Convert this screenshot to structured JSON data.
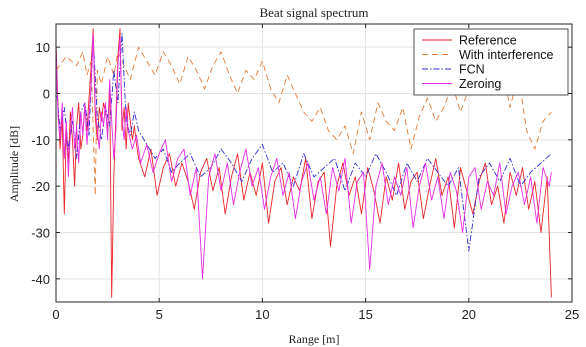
{
  "chart_data": {
    "type": "line",
    "title": "Beat signal spectrum",
    "xlabel": "Range [m]",
    "ylabel": "Amplitude [dB]",
    "xlim": [
      0,
      25
    ],
    "ylim": [
      -45,
      15
    ],
    "xticks": [
      0,
      5,
      10,
      15,
      20,
      25
    ],
    "yticks": [
      -40,
      -30,
      -20,
      -10,
      0,
      10
    ],
    "grid": true,
    "legend_position": "top-right",
    "series": [
      {
        "name": "Reference",
        "color": "#e8262a",
        "dash": "solid",
        "x": [
          0.0,
          0.1,
          0.2,
          0.3,
          0.4,
          0.5,
          0.6,
          0.7,
          0.8,
          0.9,
          1.0,
          1.1,
          1.2,
          1.3,
          1.4,
          1.5,
          1.6,
          1.7,
          1.8,
          1.9,
          2.0,
          2.1,
          2.2,
          2.3,
          2.4,
          2.5,
          2.6,
          2.7,
          2.8,
          2.9,
          3.0,
          3.1,
          3.2,
          3.3,
          3.4,
          3.5,
          3.6,
          3.7,
          3.8,
          3.9,
          4.0,
          4.3,
          4.6,
          4.9,
          5.2,
          5.5,
          5.8,
          6.1,
          6.4,
          6.7,
          7.0,
          7.3,
          7.6,
          7.9,
          8.2,
          8.5,
          8.8,
          9.1,
          9.4,
          9.7,
          10.0,
          10.3,
          10.6,
          10.9,
          11.2,
          11.5,
          11.8,
          12.1,
          12.4,
          12.7,
          13.0,
          13.3,
          13.6,
          13.9,
          14.2,
          14.5,
          14.8,
          15.1,
          15.4,
          15.7,
          16.0,
          16.3,
          16.6,
          16.9,
          17.2,
          17.5,
          17.8,
          18.1,
          18.4,
          18.7,
          19.0,
          19.3,
          19.6,
          19.9,
          20.2,
          20.5,
          20.8,
          21.1,
          21.4,
          21.7,
          22.0,
          22.3,
          22.6,
          22.9,
          23.2,
          23.5,
          23.8,
          24.0
        ],
        "y": [
          11,
          -3,
          -12,
          -5,
          -26,
          -8,
          -15,
          -4,
          -10,
          -20,
          -7,
          -2,
          -12,
          -9,
          -3,
          -8,
          -1,
          6,
          14,
          -5,
          -10,
          -3,
          -6,
          -2,
          -4,
          -8,
          2,
          -44,
          -18,
          -5,
          8,
          14,
          -8,
          -3,
          -12,
          -2,
          -6,
          -10,
          -7,
          -11,
          -14,
          -18,
          -12,
          -22,
          -16,
          -13,
          -20,
          -15,
          -19,
          -25,
          -17,
          -14,
          -21,
          -16,
          -26,
          -18,
          -13,
          -23,
          -17,
          -22,
          -15,
          -28,
          -19,
          -16,
          -24,
          -18,
          -21,
          -14,
          -27,
          -19,
          -17,
          -33,
          -20,
          -15,
          -22,
          -18,
          -26,
          -16,
          -21,
          -28,
          -18,
          -23,
          -15,
          -25,
          -19,
          -17,
          -27,
          -20,
          -14,
          -22,
          -18,
          -29,
          -16,
          -21,
          -26,
          -19,
          -15,
          -24,
          -20,
          -28,
          -17,
          -22,
          -16,
          -25,
          -19,
          -30,
          -18,
          -44
        ]
      },
      {
        "name": "With interference",
        "color": "#e57a35",
        "dash": "dashed",
        "x": [
          0.0,
          0.5,
          1.0,
          1.3,
          1.5,
          1.7,
          1.8,
          1.9,
          2.0,
          2.2,
          2.5,
          2.8,
          3.0,
          3.3,
          3.6,
          4.0,
          4.4,
          4.8,
          5.2,
          5.6,
          6.0,
          6.4,
          6.8,
          7.2,
          7.6,
          8.0,
          8.4,
          8.8,
          9.2,
          9.6,
          10.0,
          10.4,
          10.8,
          11.2,
          11.6,
          12.0,
          12.4,
          12.8,
          13.2,
          13.6,
          14.0,
          14.4,
          14.8,
          15.2,
          15.6,
          16.0,
          16.4,
          16.8,
          17.2,
          17.6,
          18.0,
          18.4,
          18.8,
          19.2,
          19.6,
          20.0,
          20.4,
          20.8,
          21.2,
          21.6,
          22.0,
          22.4,
          22.8,
          23.2,
          23.6,
          24.0
        ],
        "y": [
          5,
          8,
          6,
          9,
          4,
          7,
          -8,
          -22,
          5,
          2,
          8,
          4,
          9,
          6,
          3,
          10,
          7,
          4,
          9,
          6,
          2,
          8,
          5,
          1,
          6,
          9,
          4,
          0,
          5,
          3,
          7,
          1,
          -2,
          4,
          0,
          -4,
          -6,
          -3,
          -8,
          -10,
          -7,
          -13,
          -4,
          -10,
          -2,
          -6,
          -8,
          -3,
          -12,
          -5,
          -1,
          -6,
          -3,
          2,
          -4,
          1,
          5,
          0,
          3,
          6,
          -3,
          4,
          -8,
          -12,
          -6,
          -4
        ]
      },
      {
        "name": "FCN",
        "color": "#2b2bd6",
        "dash": "dashdot",
        "x": [
          0.0,
          0.2,
          0.4,
          0.6,
          0.8,
          1.0,
          1.2,
          1.4,
          1.6,
          1.8,
          2.0,
          2.2,
          2.4,
          2.6,
          2.8,
          3.0,
          3.2,
          3.4,
          3.6,
          3.8,
          4.0,
          4.4,
          4.8,
          5.2,
          5.6,
          6.0,
          6.5,
          7.0,
          7.5,
          8.0,
          8.5,
          9.0,
          9.5,
          10.0,
          10.5,
          11.0,
          11.5,
          12.0,
          12.5,
          13.0,
          13.5,
          14.0,
          14.5,
          15.0,
          15.5,
          16.0,
          16.5,
          17.0,
          17.5,
          18.0,
          18.5,
          19.0,
          19.5,
          20.0,
          20.5,
          21.0,
          21.5,
          22.0,
          22.5,
          23.0,
          23.5,
          24.0
        ],
        "y": [
          2,
          -8,
          -3,
          -12,
          -6,
          -14,
          -4,
          -2,
          -9,
          12,
          -5,
          -10,
          -3,
          -7,
          5,
          -2,
          13,
          -6,
          -9,
          -4,
          -8,
          -11,
          -14,
          -12,
          -17,
          -15,
          -13,
          -18,
          -16,
          -12,
          -15,
          -19,
          -14,
          -11,
          -17,
          -15,
          -20,
          -13,
          -18,
          -16,
          -14,
          -21,
          -15,
          -18,
          -13,
          -17,
          -22,
          -15,
          -19,
          -14,
          -17,
          -20,
          -16,
          -34,
          -18,
          -15,
          -19,
          -14,
          -20,
          -17,
          -15,
          -13
        ]
      },
      {
        "name": "Zeroing",
        "color": "#e82be8",
        "dash": "solid",
        "x": [
          0.0,
          0.1,
          0.2,
          0.3,
          0.4,
          0.5,
          0.6,
          0.7,
          0.8,
          0.9,
          1.0,
          1.1,
          1.2,
          1.3,
          1.4,
          1.5,
          1.6,
          1.7,
          1.8,
          1.9,
          2.0,
          2.1,
          2.2,
          2.3,
          2.4,
          2.5,
          2.6,
          2.7,
          2.8,
          2.9,
          3.0,
          3.1,
          3.2,
          3.3,
          3.4,
          3.5,
          3.7,
          3.9,
          4.1,
          4.4,
          4.7,
          5.0,
          5.3,
          5.6,
          5.9,
          6.2,
          6.5,
          6.8,
          7.1,
          7.4,
          7.7,
          8.0,
          8.3,
          8.6,
          8.9,
          9.2,
          9.5,
          9.8,
          10.1,
          10.4,
          10.7,
          11.0,
          11.3,
          11.6,
          11.9,
          12.2,
          12.5,
          12.8,
          13.1,
          13.4,
          13.7,
          14.0,
          14.3,
          14.6,
          14.9,
          15.2,
          15.5,
          15.8,
          16.1,
          16.4,
          16.7,
          17.0,
          17.3,
          17.6,
          17.9,
          18.2,
          18.5,
          18.8,
          19.1,
          19.4,
          19.7,
          20.0,
          20.3,
          20.6,
          20.9,
          21.2,
          21.5,
          21.8,
          22.1,
          22.4,
          22.7,
          23.0,
          23.3,
          23.6,
          23.9,
          24.0
        ],
        "y": [
          10,
          -5,
          -10,
          -2,
          -14,
          -6,
          -18,
          -8,
          -3,
          -12,
          -7,
          -15,
          -4,
          -9,
          -2,
          -11,
          -5,
          2,
          13,
          -3,
          -8,
          -12,
          -4,
          -7,
          -2,
          -10,
          3,
          -6,
          -14,
          -8,
          6,
          12,
          -5,
          -10,
          -3,
          -8,
          -12,
          -9,
          -15,
          -11,
          -17,
          -13,
          -10,
          -19,
          -14,
          -12,
          -22,
          -16,
          -40,
          -18,
          -13,
          -21,
          -15,
          -24,
          -17,
          -12,
          -20,
          -16,
          -25,
          -18,
          -14,
          -22,
          -17,
          -27,
          -19,
          -15,
          -23,
          -18,
          -26,
          -16,
          -21,
          -14,
          -28,
          -19,
          -17,
          -38,
          -20,
          -15,
          -24,
          -18,
          -22,
          -16,
          -29,
          -20,
          -15,
          -23,
          -18,
          -27,
          -17,
          -21,
          -30,
          -18,
          -16,
          -25,
          -19,
          -22,
          -15,
          -26,
          -20,
          -17,
          -24,
          -18,
          -28,
          -16,
          -20,
          -17
        ]
      }
    ]
  }
}
